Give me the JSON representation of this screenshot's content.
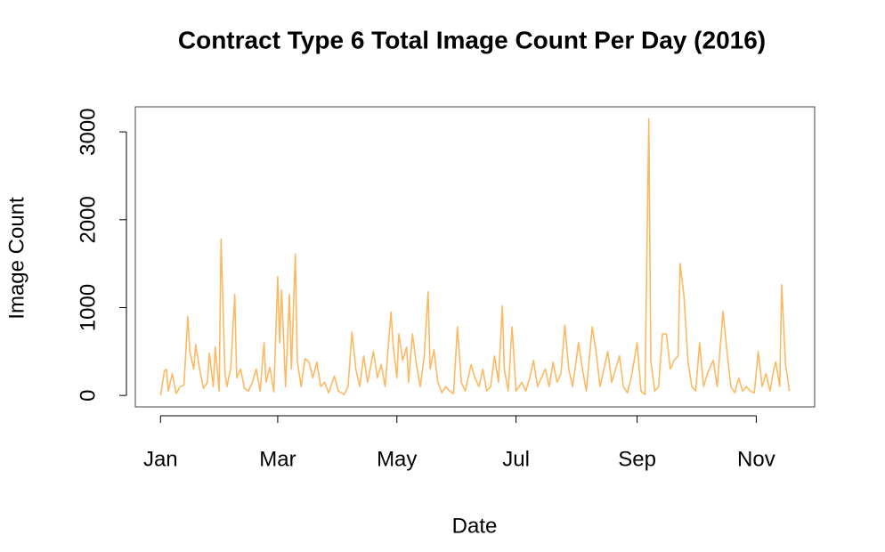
{
  "chart_data": {
    "type": "line",
    "title": "Contract Type 6 Total Image Count Per Day (2016)",
    "x_label": "Date",
    "y_label": "Image Count",
    "x": [
      0,
      2,
      3,
      4,
      6,
      8,
      10,
      12,
      14,
      15,
      17,
      18,
      20,
      22,
      24,
      25,
      27,
      28,
      30,
      31,
      33,
      34,
      36,
      38,
      39,
      41,
      43,
      45,
      47,
      49,
      51,
      53,
      54,
      56,
      58,
      60,
      61,
      62,
      64,
      66,
      67,
      69,
      70,
      72,
      74,
      76,
      78,
      80,
      82,
      84,
      86,
      89,
      91,
      94,
      96,
      98,
      100,
      102,
      104,
      106,
      109,
      111,
      113,
      115,
      118,
      119,
      121,
      122,
      124,
      126,
      127,
      129,
      131,
      133,
      135,
      137,
      138,
      140,
      142,
      144,
      146,
      148,
      150,
      152,
      154,
      156,
      159,
      161,
      163,
      165,
      167,
      169,
      171,
      173,
      175,
      176,
      178,
      180,
      182,
      185,
      187,
      189,
      191,
      193,
      195,
      197,
      199,
      201,
      203,
      205,
      207,
      209,
      211,
      214,
      216,
      218,
      221,
      223,
      225,
      227,
      229,
      231,
      233,
      235,
      237,
      239,
      241,
      244,
      246,
      248,
      250,
      251,
      253,
      255,
      257,
      259,
      261,
      263,
      265,
      266,
      268,
      270,
      272,
      274,
      276,
      278,
      280,
      283,
      285,
      288,
      290,
      292,
      294,
      296,
      298,
      300,
      302,
      304,
      306,
      308,
      310,
      312,
      314,
      315,
      317,
      318,
      320,
      322
    ],
    "series": [
      {
        "name": "Image Count",
        "color": "#fdb863",
        "values": [
          0,
          280,
          300,
          50,
          250,
          20,
          100,
          120,
          900,
          500,
          300,
          580,
          300,
          80,
          150,
          480,
          100,
          550,
          50,
          1780,
          250,
          100,
          320,
          1150,
          200,
          300,
          80,
          50,
          150,
          300,
          50,
          600,
          150,
          320,
          40,
          1350,
          600,
          1200,
          100,
          1150,
          300,
          1610,
          400,
          100,
          420,
          380,
          200,
          380,
          100,
          150,
          30,
          220,
          50,
          10,
          100,
          720,
          300,
          100,
          450,
          150,
          500,
          200,
          350,
          100,
          950,
          600,
          200,
          700,
          400,
          550,
          150,
          700,
          350,
          100,
          450,
          1180,
          300,
          520,
          150,
          30,
          100,
          50,
          20,
          780,
          150,
          50,
          350,
          200,
          100,
          300,
          50,
          100,
          450,
          150,
          1020,
          300,
          50,
          780,
          50,
          150,
          50,
          200,
          400,
          100,
          200,
          300,
          100,
          380,
          150,
          250,
          800,
          300,
          100,
          600,
          300,
          50,
          780,
          500,
          100,
          300,
          500,
          150,
          300,
          450,
          100,
          30,
          200,
          600,
          50,
          10,
          3150,
          400,
          50,
          100,
          700,
          700,
          300,
          400,
          450,
          1500,
          1130,
          400,
          100,
          50,
          600,
          100,
          250,
          400,
          100,
          960,
          500,
          100,
          30,
          200,
          50,
          100,
          50,
          30,
          500,
          100,
          250,
          50,
          300,
          380,
          100,
          1260,
          350,
          50
        ]
      }
    ],
    "xlim": [
      -12.9,
      334.9
    ],
    "xticks": [
      {
        "value": 0,
        "label": "Jan"
      },
      {
        "value": 60,
        "label": "Mar"
      },
      {
        "value": 121,
        "label": "May"
      },
      {
        "value": 182,
        "label": "Jul"
      },
      {
        "value": 244,
        "label": "Sep"
      },
      {
        "value": 305,
        "label": "Nov"
      }
    ],
    "ylim": [
      -130,
      3285
    ],
    "yticks": [
      0,
      1000,
      2000,
      3000
    ]
  }
}
